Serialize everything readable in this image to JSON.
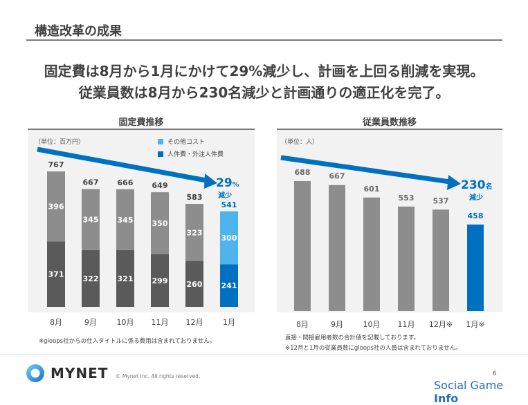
{
  "page": {
    "title": "構造改革の成果",
    "headline_1": "固定費は8月から1月にかけて29%減少し、計画を上回る削減を実現。",
    "headline_2": "従業員数は8月から230名減少と計画通りの適正化を完了。",
    "page_number": "6"
  },
  "colors": {
    "dark_gray": "#5a5a5a",
    "mid_gray": "#8d8d8d",
    "blue": "#0070c0",
    "light_blue": "#4fb3ee"
  },
  "footer": {
    "logo_text": "MYNET",
    "copyright": "© Mynet Inc. All rights reserved.",
    "watermark_prefix": "Social Game ",
    "watermark_bold": "Info"
  },
  "chart_data": [
    {
      "type": "bar",
      "stacked": true,
      "title": "固定費推移",
      "unit_label": "（単位：百万円）",
      "categories": [
        "8月",
        "9月",
        "10月",
        "11月",
        "12月",
        "1月"
      ],
      "series": [
        {
          "name": "人件費・外注人件費",
          "values": [
            371,
            322,
            321,
            299,
            260,
            241
          ]
        },
        {
          "name": "その他コスト",
          "values": [
            396,
            345,
            345,
            350,
            323,
            300
          ]
        }
      ],
      "totals": [
        767,
        667,
        666,
        649,
        583,
        541
      ],
      "ylim": [
        0,
        900
      ],
      "highlight_last": true,
      "legend": [
        "その他コスト",
        "人件費・外注人件費"
      ],
      "legend_position": "top-right",
      "annotation": {
        "value": "29",
        "suffix": "%",
        "text": "減少"
      },
      "note": "※gloops社からの仕入タイトルに係る費用は含まれておりません。"
    },
    {
      "type": "bar",
      "title": "従業員数推移",
      "unit_label": "（単位：人）",
      "categories": [
        "8月",
        "9月",
        "10月",
        "11月",
        "12月※",
        "1月※"
      ],
      "values": [
        688,
        667,
        601,
        553,
        537,
        458
      ],
      "ylim": [
        0,
        850
      ],
      "highlight_last": true,
      "annotation": {
        "value": "230",
        "suffix": "名",
        "text": "減少"
      },
      "notes": [
        "直接・間接雇用者数の合計値を記載しております。",
        "※12月と1月の従業員数にgloops社の人員は含まれておりません。"
      ]
    }
  ]
}
